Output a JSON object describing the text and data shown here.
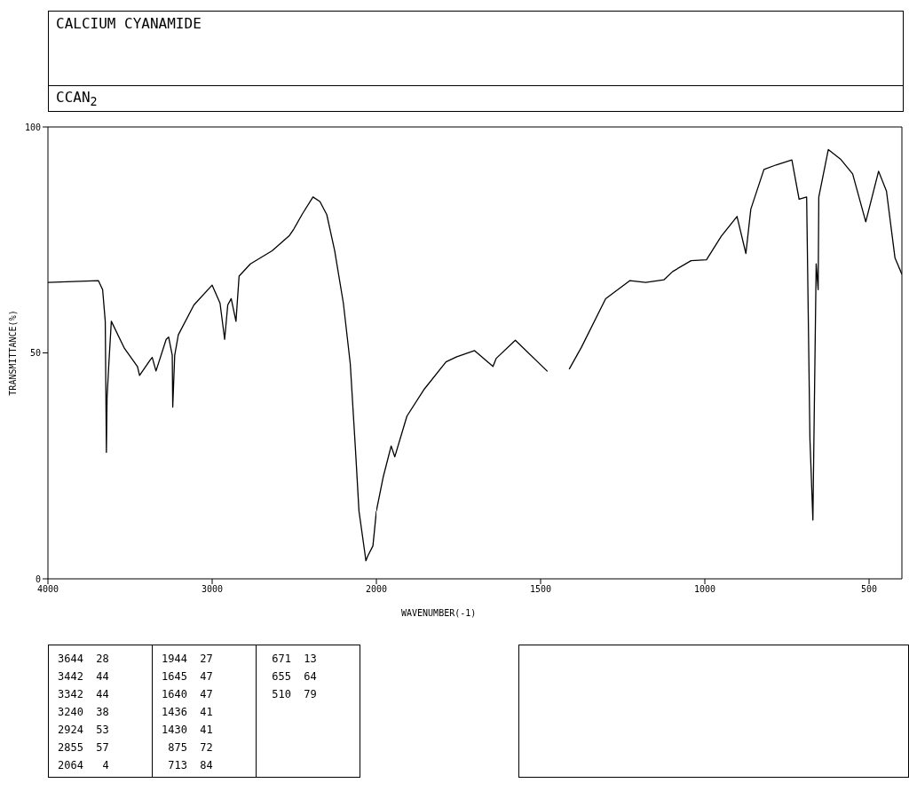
{
  "chart_data": [
    {
      "type": "line",
      "title": "CALCIUM CYANAMIDE",
      "subtitle": "CCAN$_{2}$",
      "ylabel": "TRANSMITTANCE(%)",
      "x": [
        4000,
        3693,
        3667,
        3651,
        3644,
        3640,
        3630,
        3614,
        3534,
        3455,
        3442,
        3376,
        3365,
        3342,
        3280,
        3265,
        3243,
        3240,
        3228,
        3206,
        3111,
        3000,
        2952,
        2924,
        2905,
        2884,
        2855,
        2836,
        2767,
        2635,
        2529,
        2503,
        2450,
        2386,
        2344,
        2302,
        2254,
        2201,
        2159,
        2127,
        2106,
        2069,
        2064,
        2053,
        2021,
        2000
      ],
      "series": [
        {
          "color": "#000000",
          "values": [
            65.6,
            66,
            64,
            57,
            28,
            40,
            47,
            57,
            51,
            47,
            45,
            48.5,
            49,
            46,
            53,
            53.5,
            49.5,
            38,
            49.5,
            54,
            60.6,
            65,
            61,
            53,
            60.6,
            62,
            57,
            67,
            69.7,
            72.6,
            76,
            77.4,
            80.8,
            84.5,
            83.5,
            80.6,
            72.6,
            61,
            47.6,
            28.4,
            15,
            5.4,
            4,
            5,
            7.3,
            15
          ]
        }
      ],
      "xlim": [
        4000,
        2000
      ],
      "xticks": [
        4000,
        3000,
        2000
      ],
      "ylim": [
        0,
        100
      ],
      "yticks": [
        0,
        50,
        100
      ],
      "annotations": [
        "3644  28",
        "3442  44",
        "3342  44",
        "3240  38",
        "2924  53",
        "2855  57",
        "2064   4",
        "1944  27",
        "1645  47",
        "1640  47",
        "1436  41",
        "1430  41",
        " 875  72",
        " 713  84",
        " 671  13",
        " 655  64",
        " 510  79"
      ]
    },
    {
      "type": "line",
      "xlabel": "WAVENUMBER(-1)",
      "x": [
        2000,
        1979,
        1955,
        1944,
        1907,
        1854,
        1788,
        1757,
        1701,
        1645,
        1635,
        1577,
        1479,
        1450,
        1413,
        1376,
        1302,
        1228,
        1180,
        1124,
        1098,
        1042,
        995,
        950,
        902,
        875,
        860,
        820,
        783,
        735,
        713,
        690,
        680,
        671,
        661,
        655,
        653,
        624,
        587,
        550,
        510,
        471,
        447,
        421,
        400
      ],
      "series": [
        {
          "color": "#000000",
          "values": [
            15,
            22.6,
            29.4,
            27,
            36,
            42,
            48,
            49.1,
            50.5,
            47,
            48.8,
            52.8,
            45.9,
            null,
            46.4,
            51.2,
            62,
            66,
            65.6,
            66.2,
            68,
            70.4,
            70.6,
            75.8,
            80.2,
            72,
            81.8,
            90.6,
            91.6,
            92.7,
            84,
            84.5,
            31,
            13,
            69.7,
            64,
            84.5,
            95,
            92.9,
            89.6,
            79,
            90.2,
            85.8,
            71,
            67.4
          ]
        }
      ],
      "xlim": [
        2000,
        400
      ],
      "xticks": [
        1500,
        1000,
        500
      ],
      "ylim": [
        0,
        100
      ],
      "tick_labels": "x"
    }
  ]
}
